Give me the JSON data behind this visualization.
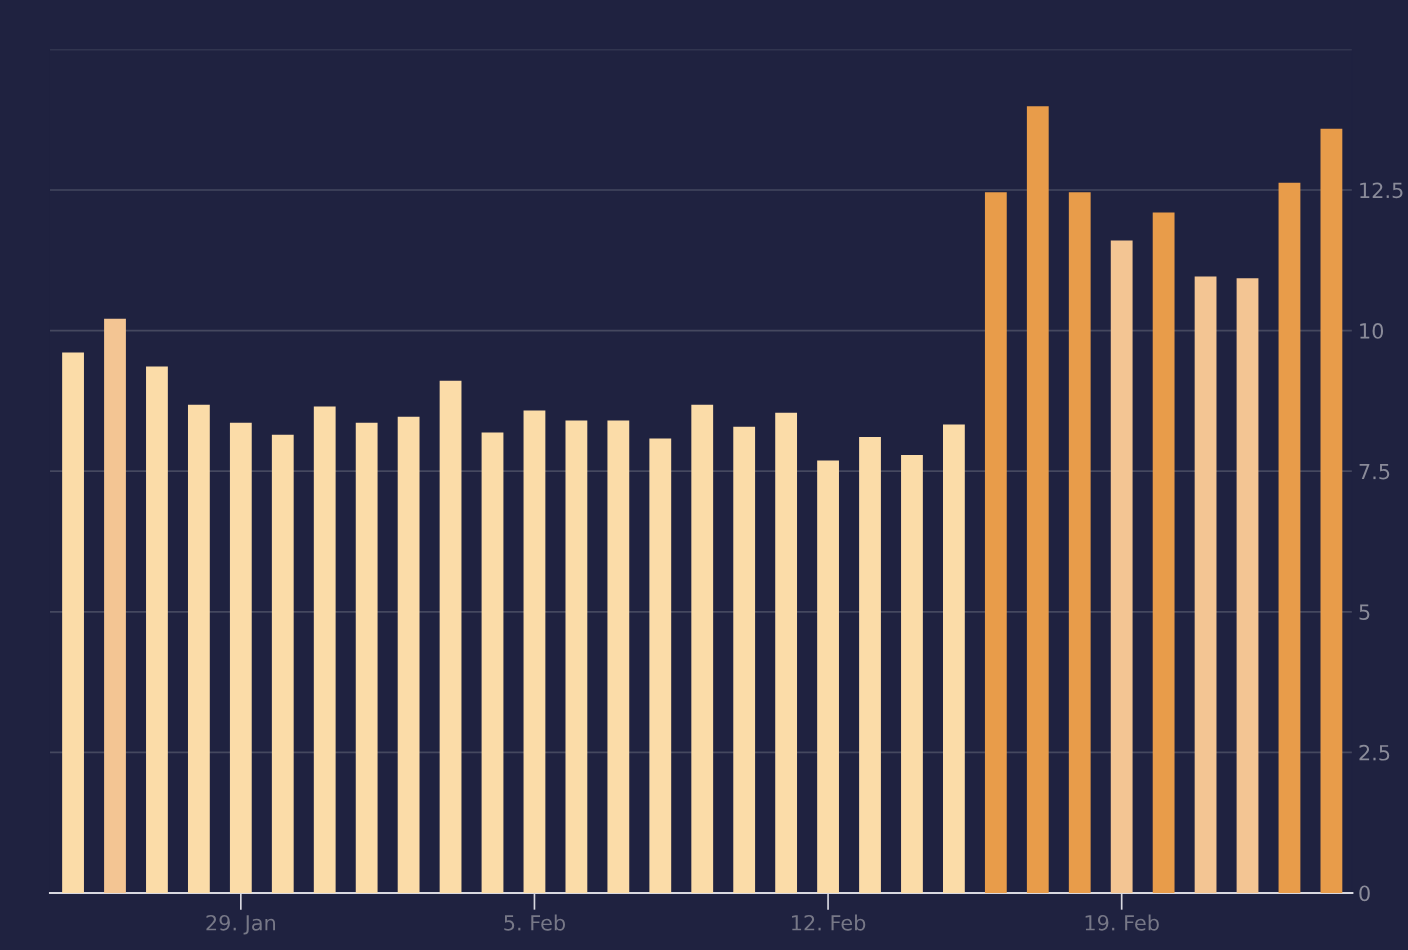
{
  "chart_data": {
    "type": "bar",
    "categories": [
      null,
      null,
      null,
      null,
      "29. Jan",
      null,
      null,
      null,
      null,
      null,
      null,
      "5. Feb",
      null,
      null,
      null,
      null,
      null,
      null,
      "12. Feb",
      null,
      null,
      null,
      null,
      null,
      null,
      "19. Feb",
      null,
      null,
      null,
      null,
      null
    ],
    "values": [
      9.61,
      10.21,
      9.36,
      8.68,
      8.36,
      8.15,
      8.65,
      8.36,
      8.47,
      9.11,
      8.19,
      8.58,
      8.4,
      8.4,
      8.08,
      8.68,
      8.29,
      8.54,
      7.69,
      8.11,
      7.79,
      8.33,
      12.46,
      13.99,
      12.46,
      11.6,
      12.1,
      10.96,
      10.93,
      12.63,
      13.59
    ],
    "colors": [
      "#fbdca8",
      "#f3c593",
      "#fbdca8",
      "#fbdca8",
      "#fbdca8",
      "#fbdca8",
      "#fbdca8",
      "#fbdca8",
      "#fbdca8",
      "#fbdca8",
      "#fbdca8",
      "#fbdca8",
      "#fbdca8",
      "#fbdca8",
      "#fbdca8",
      "#fbdca8",
      "#fbdca8",
      "#fbdca8",
      "#fbdca8",
      "#fbdca8",
      "#fbdca8",
      "#fbdca8",
      "#e89c4a",
      "#e89c4a",
      "#e89c4a",
      "#f3c593",
      "#e89c4a",
      "#f3c593",
      "#f3c593",
      "#e89c4a",
      "#e89c4a"
    ],
    "ylim": [
      0,
      15
    ],
    "yticks": [
      0,
      2.5,
      5,
      7.5,
      10,
      12.5,
      {
        "value": 15,
        "label": null
      }
    ],
    "grid": "y",
    "legend": false
  }
}
